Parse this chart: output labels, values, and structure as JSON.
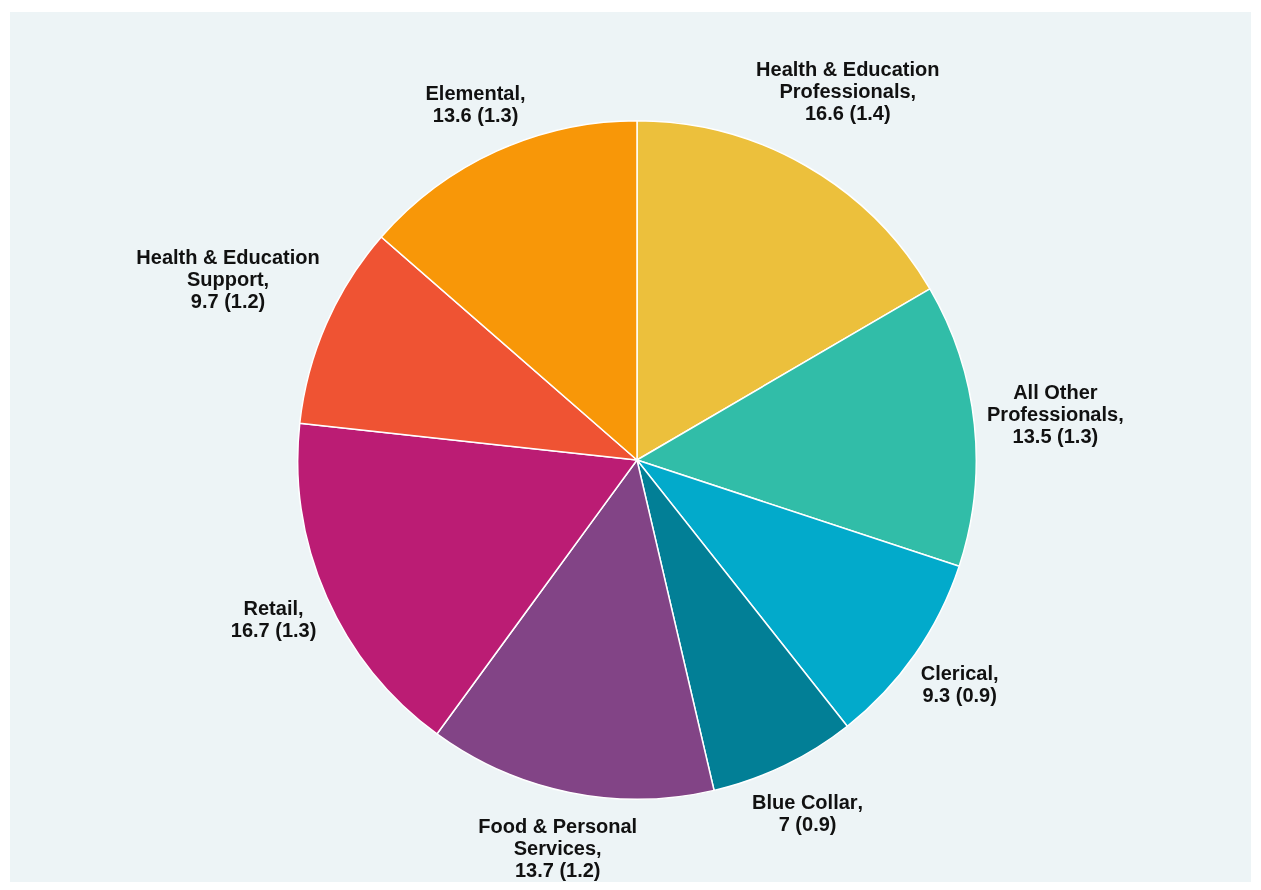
{
  "chart_data": {
    "type": "pie",
    "categories": [
      "Health & Education Professionals",
      "All Other Professionals",
      "Clerical",
      "Blue Collar",
      "Food & Personal Services",
      "Retail",
      "Health & Education Support",
      "Elemental"
    ],
    "values": [
      16.6,
      13.5,
      9.3,
      7,
      13.7,
      16.7,
      9.7,
      13.6
    ],
    "colors": [
      "#ecc03c",
      "#31bda8",
      "#02aacb",
      "#027f96",
      "#824486",
      "#bb1c74",
      "#ef5333",
      "#f89708"
    ],
    "value_labels": [
      ", 16.6 (1.4)",
      ", 13.5 (1.3)",
      ", 9.3 (0.9)",
      ", 7 (0.9)",
      ", 13.7 (1.2)",
      ", 16.7 (1.3)",
      ", 9.7 (1.2)",
      ", 13.6 (1.3)"
    ],
    "legend": false
  }
}
